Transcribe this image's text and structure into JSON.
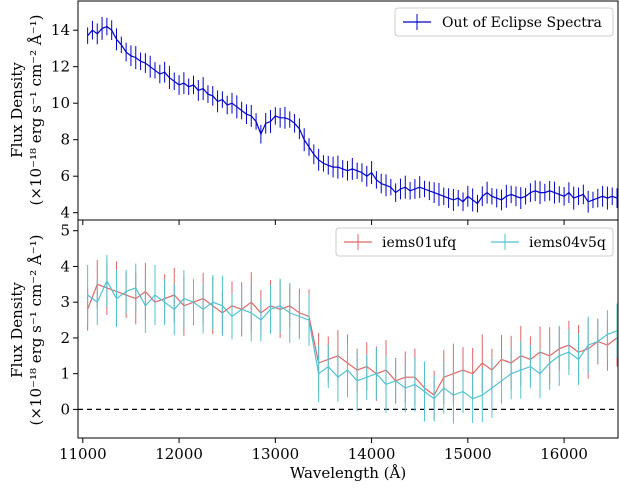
{
  "chart_data": [
    {
      "type": "line",
      "panel": "top",
      "xlim": [
        10950,
        16560
      ],
      "ylim": [
        3.6,
        15.6
      ],
      "yticks": [
        4,
        6,
        8,
        10,
        12,
        14
      ],
      "ytick_labels": [
        "4",
        "6",
        "8",
        "10",
        "12",
        "14"
      ],
      "ylabel_line1": "Flux Density",
      "ylabel_line2": "(×10⁻¹⁸ erg s⁻¹ cm⁻² Å⁻¹)",
      "legend_position": "top-right",
      "errorbars": true,
      "series": [
        {
          "name": "Out of Eclipse Spectra",
          "color": "#0000cc",
          "x": [
            11050,
            11100,
            11150,
            11200,
            11250,
            11300,
            11350,
            11400,
            11450,
            11500,
            11550,
            11600,
            11650,
            11700,
            11750,
            11800,
            11850,
            11900,
            11950,
            12000,
            12050,
            12100,
            12150,
            12200,
            12250,
            12300,
            12350,
            12400,
            12450,
            12500,
            12550,
            12600,
            12650,
            12700,
            12750,
            12800,
            12850,
            12900,
            12950,
            13000,
            13050,
            13100,
            13150,
            13200,
            13250,
            13300,
            13350,
            13400,
            13450,
            13500,
            13550,
            13600,
            13650,
            13700,
            13750,
            13800,
            13850,
            13900,
            13950,
            14000,
            14050,
            14100,
            14150,
            14200,
            14250,
            14300,
            14350,
            14400,
            14450,
            14500,
            14550,
            14600,
            14650,
            14700,
            14750,
            14800,
            14850,
            14900,
            14950,
            15000,
            15050,
            15100,
            15150,
            15200,
            15250,
            15300,
            15350,
            15400,
            15450,
            15500,
            15550,
            15600,
            15650,
            15700,
            15750,
            15800,
            15850,
            15900,
            15950,
            16000,
            16050,
            16100,
            16150,
            16200,
            16250,
            16300,
            16350,
            16400,
            16450,
            16500,
            16550
          ],
          "y": [
            13.7,
            14.0,
            13.8,
            14.1,
            14.2,
            14.0,
            13.5,
            13.2,
            12.8,
            12.6,
            12.5,
            12.3,
            12.2,
            12.0,
            11.8,
            11.6,
            11.7,
            11.4,
            11.2,
            11.0,
            11.1,
            10.9,
            11.0,
            10.7,
            10.8,
            10.5,
            10.4,
            10.1,
            10.2,
            9.9,
            10.0,
            9.8,
            9.6,
            9.4,
            9.3,
            9.0,
            8.3,
            8.9,
            9.0,
            9.3,
            9.2,
            9.2,
            9.1,
            8.9,
            8.6,
            8.0,
            7.6,
            7.2,
            6.9,
            6.7,
            6.6,
            6.5,
            6.5,
            6.4,
            6.3,
            6.4,
            6.3,
            6.2,
            6.0,
            6.2,
            5.8,
            5.6,
            5.5,
            5.4,
            5.1,
            5.3,
            5.4,
            5.2,
            5.3,
            5.4,
            5.3,
            5.2,
            5.1,
            5.0,
            4.9,
            4.8,
            4.7,
            4.8,
            4.6,
            4.9,
            4.7,
            4.5,
            4.9,
            5.1,
            4.9,
            4.8,
            4.7,
            4.9,
            5.0,
            4.9,
            4.8,
            4.9,
            5.1,
            5.2,
            5.1,
            5.1,
            5.2,
            5.1,
            5.0,
            4.9,
            5.1,
            4.8,
            4.9,
            5.0,
            4.6,
            4.7,
            4.8,
            4.9,
            4.8,
            4.9,
            4.8
          ],
          "yerr": 0.6
        }
      ]
    },
    {
      "type": "line",
      "panel": "bottom",
      "xlim": [
        10950,
        16560
      ],
      "ylim": [
        -0.8,
        5.3
      ],
      "yticks": [
        0,
        1,
        2,
        3,
        4,
        5
      ],
      "ytick_labels": [
        "0",
        "1",
        "2",
        "3",
        "4",
        "5"
      ],
      "xticks": [
        11000,
        12000,
        13000,
        14000,
        15000,
        16000
      ],
      "xtick_labels": [
        "11000",
        "12000",
        "13000",
        "14000",
        "15000",
        "16000"
      ],
      "xlabel": "Wavelength (Å)",
      "ylabel_line1": "Flux Density",
      "ylabel_line2": "(×10⁻¹⁸ erg s⁻¹ cm⁻² Å⁻¹)",
      "reference_line": {
        "y": 0,
        "style": "dashed"
      },
      "legend_position": "top-right",
      "errorbars": true,
      "series": [
        {
          "name": "iems01ufq",
          "color": "#e06666",
          "x": [
            11050,
            11150,
            11250,
            11350,
            11450,
            11550,
            11650,
            11750,
            11850,
            11950,
            12050,
            12150,
            12250,
            12350,
            12450,
            12550,
            12650,
            12750,
            12850,
            12950,
            13050,
            13150,
            13250,
            13350,
            13450,
            13550,
            13650,
            13750,
            13850,
            13950,
            14050,
            14150,
            14250,
            14350,
            14450,
            14550,
            14650,
            14750,
            14850,
            14950,
            15050,
            15150,
            15250,
            15350,
            15450,
            15550,
            15650,
            15750,
            15850,
            15950,
            16050,
            16150,
            16250,
            16350,
            16450,
            16550
          ],
          "y": [
            2.8,
            3.5,
            3.4,
            3.3,
            3.2,
            3.1,
            3.3,
            3.0,
            3.1,
            3.2,
            2.9,
            3.0,
            3.1,
            2.9,
            2.7,
            2.9,
            2.8,
            3.0,
            2.7,
            2.9,
            2.8,
            2.9,
            2.7,
            2.6,
            1.3,
            1.4,
            1.5,
            1.3,
            1.1,
            1.2,
            1.0,
            1.1,
            0.8,
            0.9,
            0.9,
            0.6,
            0.4,
            0.9,
            1.0,
            1.1,
            1.0,
            1.3,
            1.1,
            1.4,
            1.3,
            1.5,
            1.4,
            1.6,
            1.5,
            1.7,
            1.8,
            1.6,
            1.7,
            1.9,
            1.8,
            2.0
          ],
          "yerr": 0.8
        },
        {
          "name": "iems04v5q",
          "color": "#4fc3d0",
          "x": [
            11050,
            11150,
            11250,
            11350,
            11450,
            11550,
            11650,
            11750,
            11850,
            11950,
            12050,
            12150,
            12250,
            12350,
            12450,
            12550,
            12650,
            12750,
            12850,
            12950,
            13050,
            13150,
            13250,
            13350,
            13450,
            13550,
            13650,
            13750,
            13850,
            13950,
            14050,
            14150,
            14250,
            14350,
            14450,
            14550,
            14650,
            14750,
            14850,
            14950,
            15050,
            15150,
            15250,
            15350,
            15450,
            15550,
            15650,
            15750,
            15850,
            15950,
            16050,
            16150,
            16250,
            16350,
            16450,
            16550
          ],
          "y": [
            3.2,
            3.0,
            3.6,
            3.1,
            3.3,
            3.4,
            2.9,
            3.2,
            3.0,
            2.8,
            3.1,
            3.0,
            2.8,
            3.0,
            2.9,
            2.6,
            2.8,
            2.7,
            2.5,
            2.8,
            2.9,
            2.7,
            2.6,
            2.5,
            1.0,
            1.2,
            0.9,
            1.1,
            0.8,
            0.9,
            1.0,
            0.7,
            0.8,
            0.6,
            0.7,
            0.5,
            0.3,
            0.6,
            0.4,
            0.5,
            0.3,
            0.4,
            0.6,
            0.8,
            1.0,
            1.1,
            1.2,
            1.0,
            1.3,
            1.5,
            1.6,
            1.4,
            1.8,
            1.9,
            2.1,
            2.2
          ],
          "yerr": 0.8
        }
      ]
    }
  ]
}
